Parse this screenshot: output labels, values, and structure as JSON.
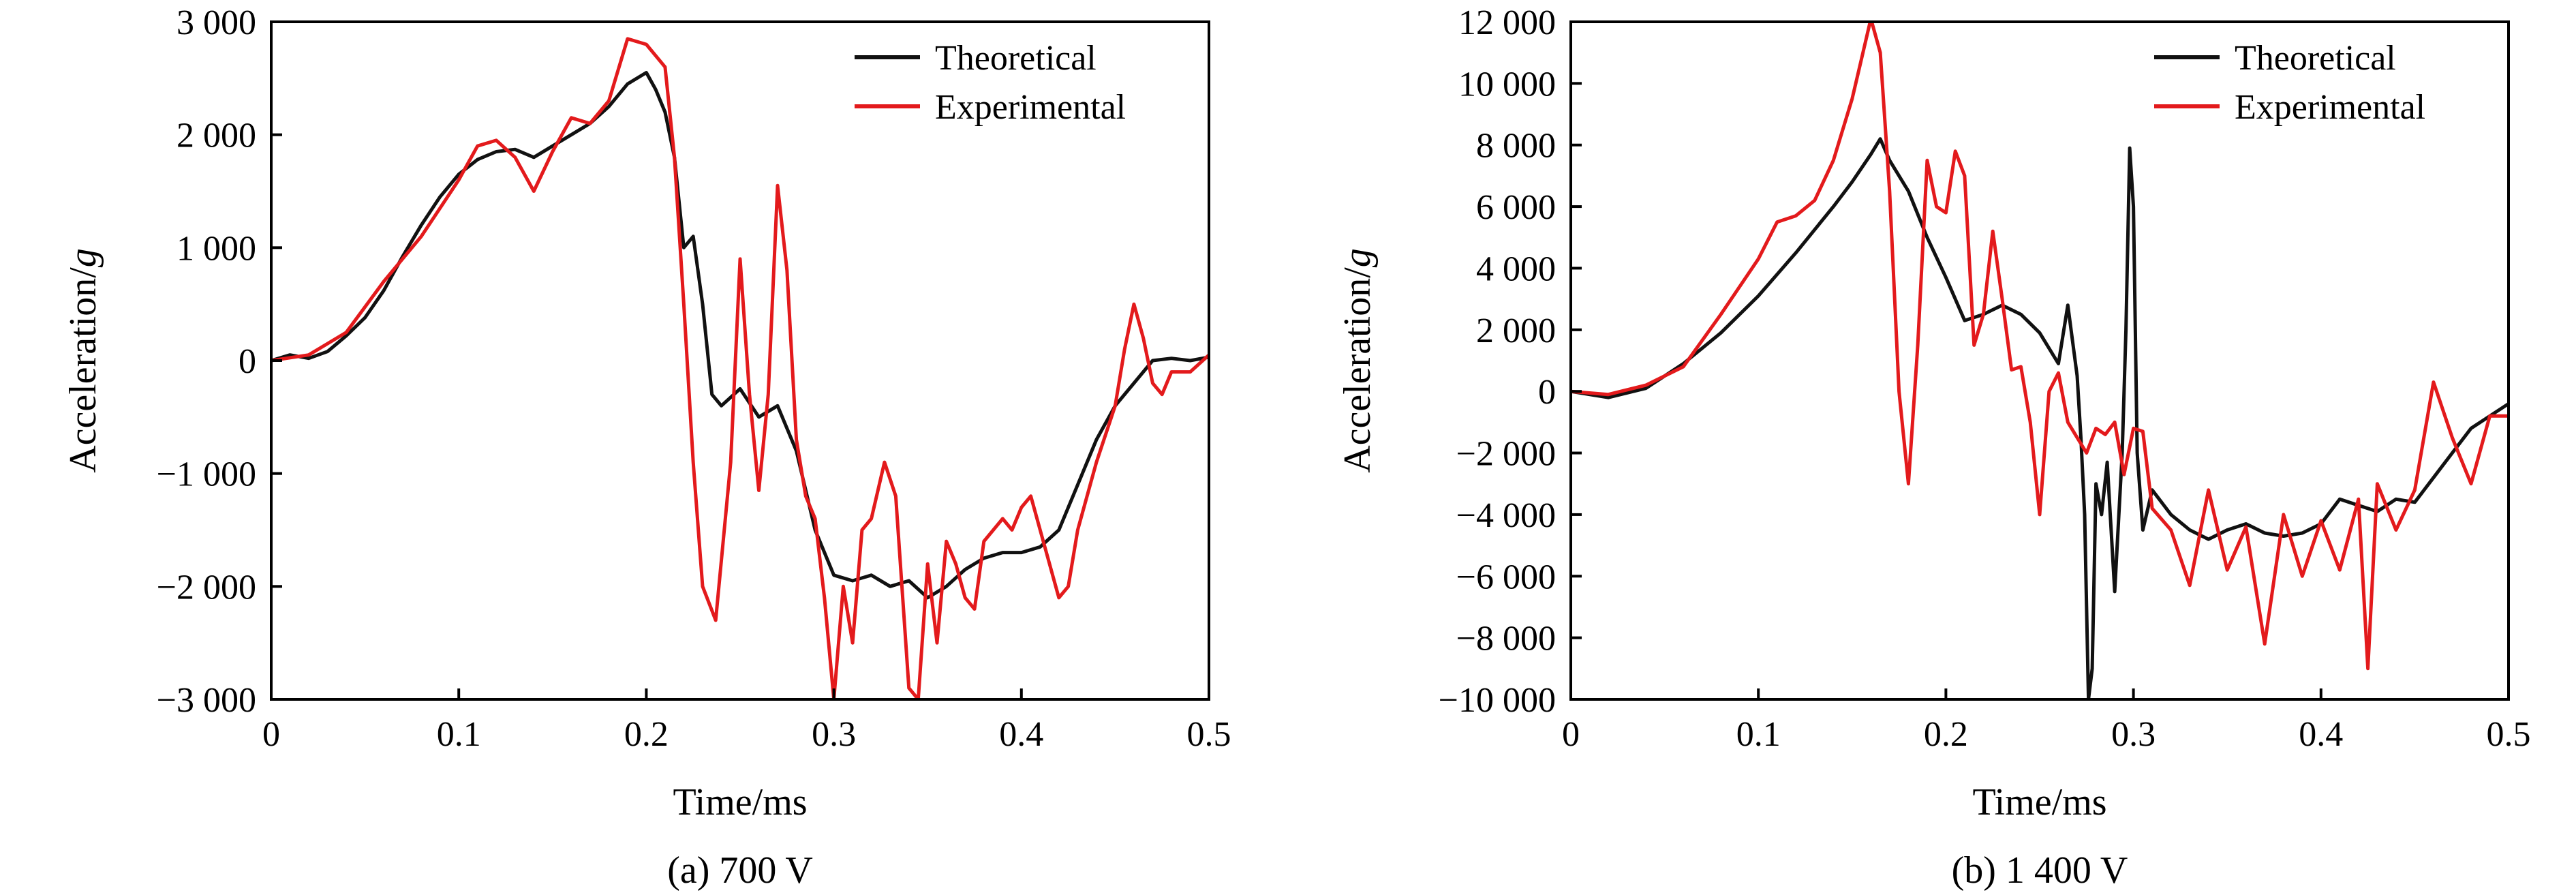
{
  "chart_data": [
    {
      "type": "line",
      "caption": "(a) 700 V",
      "xlabel": "Time/ms",
      "ylabel_main": "Acceleration/",
      "ylabel_unit": "g",
      "xlim": [
        0,
        0.5
      ],
      "ylim": [
        -3000,
        3000
      ],
      "xticks": [
        0,
        0.1,
        0.2,
        0.3,
        0.4,
        0.5
      ],
      "xtick_labels": [
        "0",
        "0.1",
        "0.2",
        "0.3",
        "0.4",
        "0.5"
      ],
      "yticks": [
        -3000,
        -2000,
        -1000,
        0,
        1000,
        2000,
        3000
      ],
      "ytick_labels": [
        "−3 000",
        "−2 000",
        "−1 000",
        "0",
        "1 000",
        "2 000",
        "3 000"
      ],
      "legend_position": "top-right",
      "series": [
        {
          "name": "Theoretical",
          "color": "#111111",
          "x": [
            0,
            0.01,
            0.02,
            0.03,
            0.04,
            0.05,
            0.06,
            0.07,
            0.08,
            0.09,
            0.1,
            0.11,
            0.12,
            0.13,
            0.14,
            0.15,
            0.16,
            0.17,
            0.18,
            0.19,
            0.2,
            0.205,
            0.21,
            0.215,
            0.22,
            0.225,
            0.23,
            0.235,
            0.24,
            0.25,
            0.26,
            0.27,
            0.28,
            0.29,
            0.3,
            0.31,
            0.32,
            0.33,
            0.34,
            0.35,
            0.36,
            0.37,
            0.38,
            0.39,
            0.4,
            0.41,
            0.42,
            0.43,
            0.44,
            0.45,
            0.46,
            0.47,
            0.48,
            0.49,
            0.5
          ],
          "y": [
            0,
            50,
            20,
            80,
            220,
            380,
            620,
            920,
            1200,
            1450,
            1650,
            1780,
            1850,
            1870,
            1800,
            1900,
            2000,
            2100,
            2250,
            2450,
            2550,
            2400,
            2200,
            1800,
            1000,
            1100,
            500,
            -300,
            -400,
            -250,
            -500,
            -400,
            -800,
            -1500,
            -1900,
            -1950,
            -1900,
            -2000,
            -1950,
            -2100,
            -2000,
            -1850,
            -1750,
            -1700,
            -1700,
            -1650,
            -1500,
            -1100,
            -700,
            -400,
            -200,
            0,
            20,
            0,
            30
          ]
        },
        {
          "name": "Experimental",
          "color": "#e31a1c",
          "x": [
            0,
            0.02,
            0.04,
            0.06,
            0.08,
            0.1,
            0.11,
            0.12,
            0.13,
            0.14,
            0.15,
            0.16,
            0.17,
            0.18,
            0.19,
            0.2,
            0.21,
            0.215,
            0.22,
            0.225,
            0.23,
            0.237,
            0.245,
            0.25,
            0.255,
            0.26,
            0.265,
            0.27,
            0.275,
            0.28,
            0.285,
            0.29,
            0.295,
            0.3,
            0.305,
            0.31,
            0.315,
            0.32,
            0.327,
            0.333,
            0.34,
            0.345,
            0.35,
            0.355,
            0.36,
            0.365,
            0.37,
            0.375,
            0.38,
            0.39,
            0.395,
            0.4,
            0.405,
            0.41,
            0.42,
            0.425,
            0.43,
            0.44,
            0.45,
            0.455,
            0.46,
            0.465,
            0.47,
            0.475,
            0.48,
            0.49,
            0.5
          ],
          "y": [
            0,
            50,
            250,
            700,
            1100,
            1600,
            1900,
            1950,
            1800,
            1500,
            1850,
            2150,
            2100,
            2300,
            2850,
            2800,
            2600,
            1800,
            500,
            -900,
            -2000,
            -2300,
            -900,
            900,
            -300,
            -1150,
            -300,
            1550,
            800,
            -700,
            -1200,
            -1400,
            -2100,
            -3000,
            -2000,
            -2500,
            -1500,
            -1400,
            -900,
            -1200,
            -2900,
            -3000,
            -1800,
            -2500,
            -1600,
            -1800,
            -2100,
            -2200,
            -1600,
            -1400,
            -1500,
            -1300,
            -1200,
            -1500,
            -2100,
            -2000,
            -1500,
            -900,
            -400,
            100,
            500,
            200,
            -200,
            -300,
            -100,
            -100,
            50
          ]
        }
      ]
    },
    {
      "type": "line",
      "caption": "(b) 1 400 V",
      "xlabel": "Time/ms",
      "ylabel_main": "Acceleration/",
      "ylabel_unit": "g",
      "xlim": [
        0,
        0.5
      ],
      "ylim": [
        -10000,
        12000
      ],
      "xticks": [
        0,
        0.1,
        0.2,
        0.3,
        0.4,
        0.5
      ],
      "xtick_labels": [
        "0",
        "0.1",
        "0.2",
        "0.3",
        "0.4",
        "0.5"
      ],
      "yticks": [
        -10000,
        -8000,
        -6000,
        -4000,
        -2000,
        0,
        2000,
        4000,
        6000,
        8000,
        10000,
        12000
      ],
      "ytick_labels": [
        "−10 000",
        "−8 000",
        "−6 000",
        "−4 000",
        "−2 000",
        "0",
        "2 000",
        "4 000",
        "6 000",
        "8 000",
        "10 000",
        "12 000"
      ],
      "legend_position": "top-right",
      "series": [
        {
          "name": "Theoretical",
          "color": "#111111",
          "x": [
            0,
            0.02,
            0.04,
            0.06,
            0.08,
            0.1,
            0.12,
            0.14,
            0.15,
            0.16,
            0.165,
            0.17,
            0.18,
            0.19,
            0.2,
            0.21,
            0.22,
            0.23,
            0.24,
            0.25,
            0.26,
            0.265,
            0.27,
            0.272,
            0.274,
            0.276,
            0.278,
            0.28,
            0.283,
            0.286,
            0.29,
            0.294,
            0.296,
            0.298,
            0.3,
            0.302,
            0.305,
            0.31,
            0.32,
            0.33,
            0.34,
            0.35,
            0.36,
            0.37,
            0.38,
            0.39,
            0.4,
            0.41,
            0.42,
            0.43,
            0.44,
            0.45,
            0.46,
            0.47,
            0.48,
            0.49,
            0.5
          ],
          "y": [
            0,
            -200,
            100,
            900,
            1900,
            3100,
            4500,
            6000,
            6800,
            7700,
            8200,
            7500,
            6500,
            5000,
            3700,
            2300,
            2500,
            2800,
            2500,
            1900,
            900,
            2800,
            500,
            -1500,
            -4000,
            -10000,
            -9000,
            -3000,
            -4000,
            -2300,
            -6500,
            -2000,
            2000,
            7900,
            6000,
            -2000,
            -4500,
            -3200,
            -4000,
            -4500,
            -4800,
            -4500,
            -4300,
            -4600,
            -4700,
            -4600,
            -4300,
            -3500,
            -3700,
            -3900,
            -3500,
            -3600,
            -2800,
            -2000,
            -1200,
            -800,
            -400
          ]
        },
        {
          "name": "Experimental",
          "color": "#e31a1c",
          "x": [
            0,
            0.02,
            0.04,
            0.06,
            0.08,
            0.1,
            0.11,
            0.12,
            0.13,
            0.14,
            0.15,
            0.155,
            0.16,
            0.165,
            0.17,
            0.175,
            0.18,
            0.185,
            0.19,
            0.195,
            0.2,
            0.205,
            0.21,
            0.215,
            0.22,
            0.225,
            0.23,
            0.235,
            0.24,
            0.245,
            0.25,
            0.255,
            0.26,
            0.265,
            0.27,
            0.275,
            0.28,
            0.285,
            0.29,
            0.295,
            0.3,
            0.305,
            0.31,
            0.32,
            0.33,
            0.34,
            0.35,
            0.36,
            0.37,
            0.38,
            0.39,
            0.4,
            0.41,
            0.42,
            0.425,
            0.43,
            0.44,
            0.45,
            0.46,
            0.47,
            0.48,
            0.49,
            0.5
          ],
          "y": [
            0,
            -100,
            200,
            800,
            2500,
            4300,
            5500,
            5700,
            6200,
            7500,
            9500,
            10800,
            12100,
            11000,
            6500,
            0,
            -3000,
            1500,
            7500,
            6000,
            5800,
            7800,
            7000,
            1500,
            2500,
            5200,
            3000,
            700,
            800,
            -1000,
            -4000,
            0,
            600,
            -1000,
            -1500,
            -2000,
            -1200,
            -1400,
            -1000,
            -2700,
            -1200,
            -1300,
            -3800,
            -4500,
            -6300,
            -3200,
            -5800,
            -4400,
            -8200,
            -4000,
            -6000,
            -4200,
            -5800,
            -3500,
            -9000,
            -3000,
            -4500,
            -3200,
            300,
            -1500,
            -3000,
            -800,
            -800
          ]
        }
      ]
    }
  ]
}
